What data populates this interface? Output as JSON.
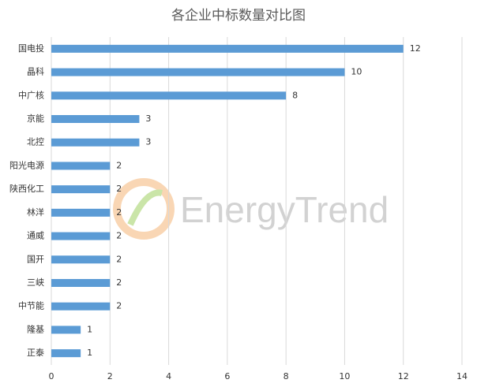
{
  "chart_data": {
    "type": "bar",
    "orientation": "horizontal",
    "title": "各企业中标数量对比图",
    "categories": [
      "国电投",
      "晶科",
      "中广核",
      "京能",
      "北控",
      "阳光电源",
      "陕西化工",
      "林洋",
      "通威",
      "国开",
      "三峡",
      "中节能",
      "隆基",
      "正泰"
    ],
    "values": [
      12,
      10,
      8,
      3,
      3,
      2,
      2,
      2,
      2,
      2,
      2,
      2,
      1,
      1
    ],
    "color": "#5b9bd5",
    "xlim": [
      0,
      14
    ],
    "xticks": [
      0,
      2,
      4,
      6,
      8,
      10,
      12,
      14
    ],
    "grid": true,
    "watermark": "EnergyTrend"
  }
}
